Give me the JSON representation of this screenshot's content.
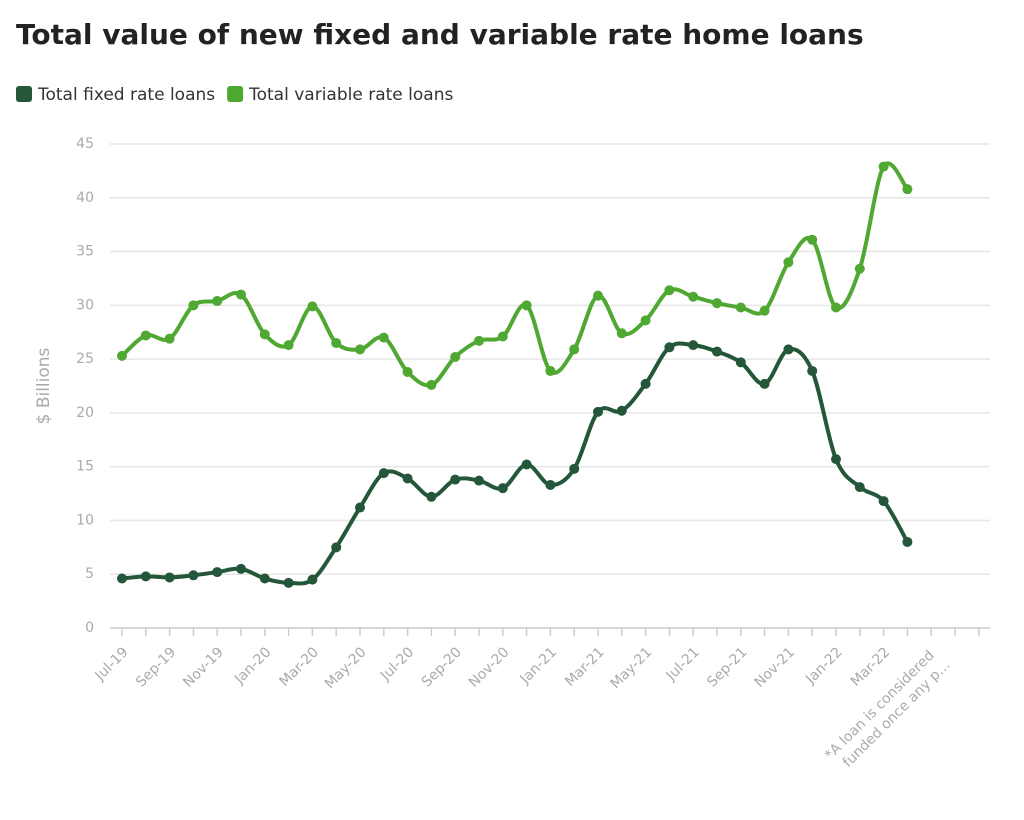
{
  "chart_data": {
    "type": "line",
    "title": "Total value of new fixed and variable rate home loans",
    "y_label": "$ Billions",
    "categories": [
      "Jul-19",
      null,
      "Sep-19",
      null,
      "Nov-19",
      null,
      "Jan-20",
      null,
      "Mar-20",
      null,
      "May-20",
      null,
      "Jul-20",
      null,
      "Sep-20",
      null,
      "Nov-20",
      null,
      "Jan-21",
      null,
      "Mar-21",
      null,
      "May-21",
      null,
      "Jul-21",
      null,
      "Sep-21",
      null,
      "Nov-21",
      null,
      "Jan-22",
      null,
      "Mar-22",
      null,
      "*A loan is considered funded once any p…",
      null,
      null
    ],
    "series": [
      {
        "name": "Total fixed rate loans",
        "color": "#24573a",
        "values": [
          4.6,
          4.8,
          4.7,
          4.9,
          5.2,
          5.5,
          4.6,
          4.2,
          4.5,
          7.5,
          11.2,
          14.4,
          13.9,
          12.2,
          13.8,
          13.7,
          13.0,
          15.2,
          13.3,
          14.8,
          20.1,
          20.2,
          22.7,
          26.1,
          26.3,
          25.7,
          24.7,
          22.7,
          25.9,
          23.9,
          15.7,
          13.1,
          11.8,
          8.0,
          null,
          null,
          null
        ]
      },
      {
        "name": "Total variable rate loans",
        "color": "#4fa832",
        "values": [
          25.3,
          27.2,
          26.9,
          30.0,
          30.4,
          31.0,
          27.3,
          26.3,
          29.9,
          26.5,
          25.9,
          27.0,
          23.8,
          22.6,
          25.2,
          26.7,
          27.1,
          30.0,
          23.9,
          25.9,
          30.9,
          27.4,
          28.6,
          31.4,
          30.8,
          30.2,
          29.8,
          29.5,
          34.0,
          36.1,
          29.8,
          33.4,
          42.9,
          40.8,
          null,
          null,
          null
        ]
      }
    ],
    "ylim": [
      0,
      45
    ],
    "yticks": [
      0,
      5,
      10,
      15,
      20,
      25,
      30,
      35,
      40,
      45
    ],
    "grid": true
  }
}
